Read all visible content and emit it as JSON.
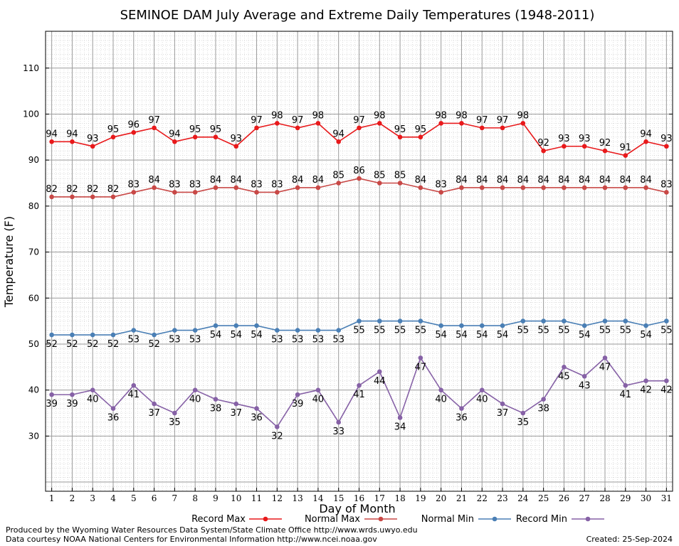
{
  "chart_data": {
    "type": "line",
    "title": "SEMINOE DAM July Average and Extreme Daily Temperatures (1948-2011)",
    "xlabel": "Day of Month",
    "ylabel": "Temperature (F)",
    "xlim": [
      0.7,
      31.3
    ],
    "ylim": [
      18,
      118
    ],
    "yticks": [
      30,
      40,
      50,
      60,
      70,
      80,
      90,
      100,
      110
    ],
    "x": [
      1,
      2,
      3,
      4,
      5,
      6,
      7,
      8,
      9,
      10,
      11,
      12,
      13,
      14,
      15,
      16,
      17,
      18,
      19,
      20,
      21,
      22,
      23,
      24,
      25,
      26,
      27,
      28,
      29,
      30,
      31
    ],
    "grid": true,
    "series": [
      {
        "name": "Record Max",
        "color": "#e8191b",
        "values": [
          94,
          94,
          93,
          95,
          96,
          97,
          94,
          95,
          95,
          93,
          97,
          98,
          97,
          98,
          94,
          97,
          98,
          95,
          95,
          98,
          98,
          97,
          97,
          98,
          92,
          93,
          93,
          92,
          91,
          94,
          93
        ],
        "label_position": "above"
      },
      {
        "name": "Normal Max",
        "color": "#c84846",
        "values": [
          82,
          82,
          82,
          82,
          83,
          84,
          83,
          83,
          84,
          84,
          83,
          83,
          84,
          84,
          85,
          86,
          85,
          85,
          84,
          83,
          84,
          84,
          84,
          84,
          84,
          84,
          84,
          84,
          84,
          84,
          83
        ],
        "label_position": "above"
      },
      {
        "name": "Normal Min",
        "color": "#4a7fb5",
        "values": [
          52,
          52,
          52,
          52,
          53,
          52,
          53,
          53,
          54,
          54,
          54,
          53,
          53,
          53,
          53,
          55,
          55,
          55,
          55,
          54,
          54,
          54,
          54,
          55,
          55,
          55,
          54,
          55,
          55,
          54,
          55
        ],
        "label_position": "below"
      },
      {
        "name": "Record Min",
        "color": "#8661a6",
        "values": [
          39,
          39,
          40,
          36,
          41,
          37,
          35,
          40,
          38,
          37,
          36,
          32,
          39,
          40,
          33,
          41,
          44,
          34,
          47,
          40,
          36,
          40,
          37,
          35,
          38,
          45,
          43,
          47,
          41,
          42,
          42
        ],
        "label_position": "below"
      }
    ]
  },
  "footer": {
    "line1": "Produced by the Wyoming Water Resources Data System/State Climate Office http://www.wrds.uwyo.edu",
    "line2": "Data courtesy NOAA National Centers for Environmental Information http://www.ncei.noaa.gov",
    "created": "Created:  25-Sep-2024"
  }
}
